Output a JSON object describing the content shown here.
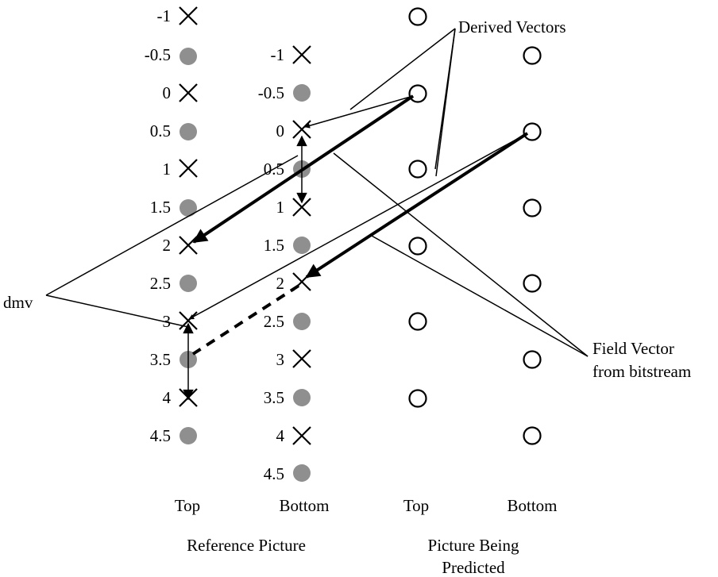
{
  "reference_picture": {
    "label": "Reference Picture",
    "top": {
      "label": "Top",
      "positions": [
        "-1",
        "-0.5",
        "0",
        "0.5",
        "1",
        "1.5",
        "2",
        "2.5",
        "3",
        "3.5",
        "4",
        "4.5"
      ]
    },
    "bottom": {
      "label": "Bottom",
      "positions": [
        "-1",
        "-0.5",
        "0",
        "0.5",
        "1",
        "1.5",
        "2",
        "2.5",
        "3",
        "3.5",
        "4",
        "4.5"
      ]
    }
  },
  "predicted_picture": {
    "label_line1": "Picture Being",
    "label_line2": "Predicted",
    "top_label": "Top",
    "bottom_label": "Bottom"
  },
  "annotations": {
    "derived_vectors": "Derived Vectors",
    "dmv": "dmv",
    "field_vector_line1": "Field Vector",
    "field_vector_line2": "from bitstream"
  },
  "markers": {
    "integer": "cross",
    "half": "gray-dot",
    "predicted": "open-circle"
  }
}
